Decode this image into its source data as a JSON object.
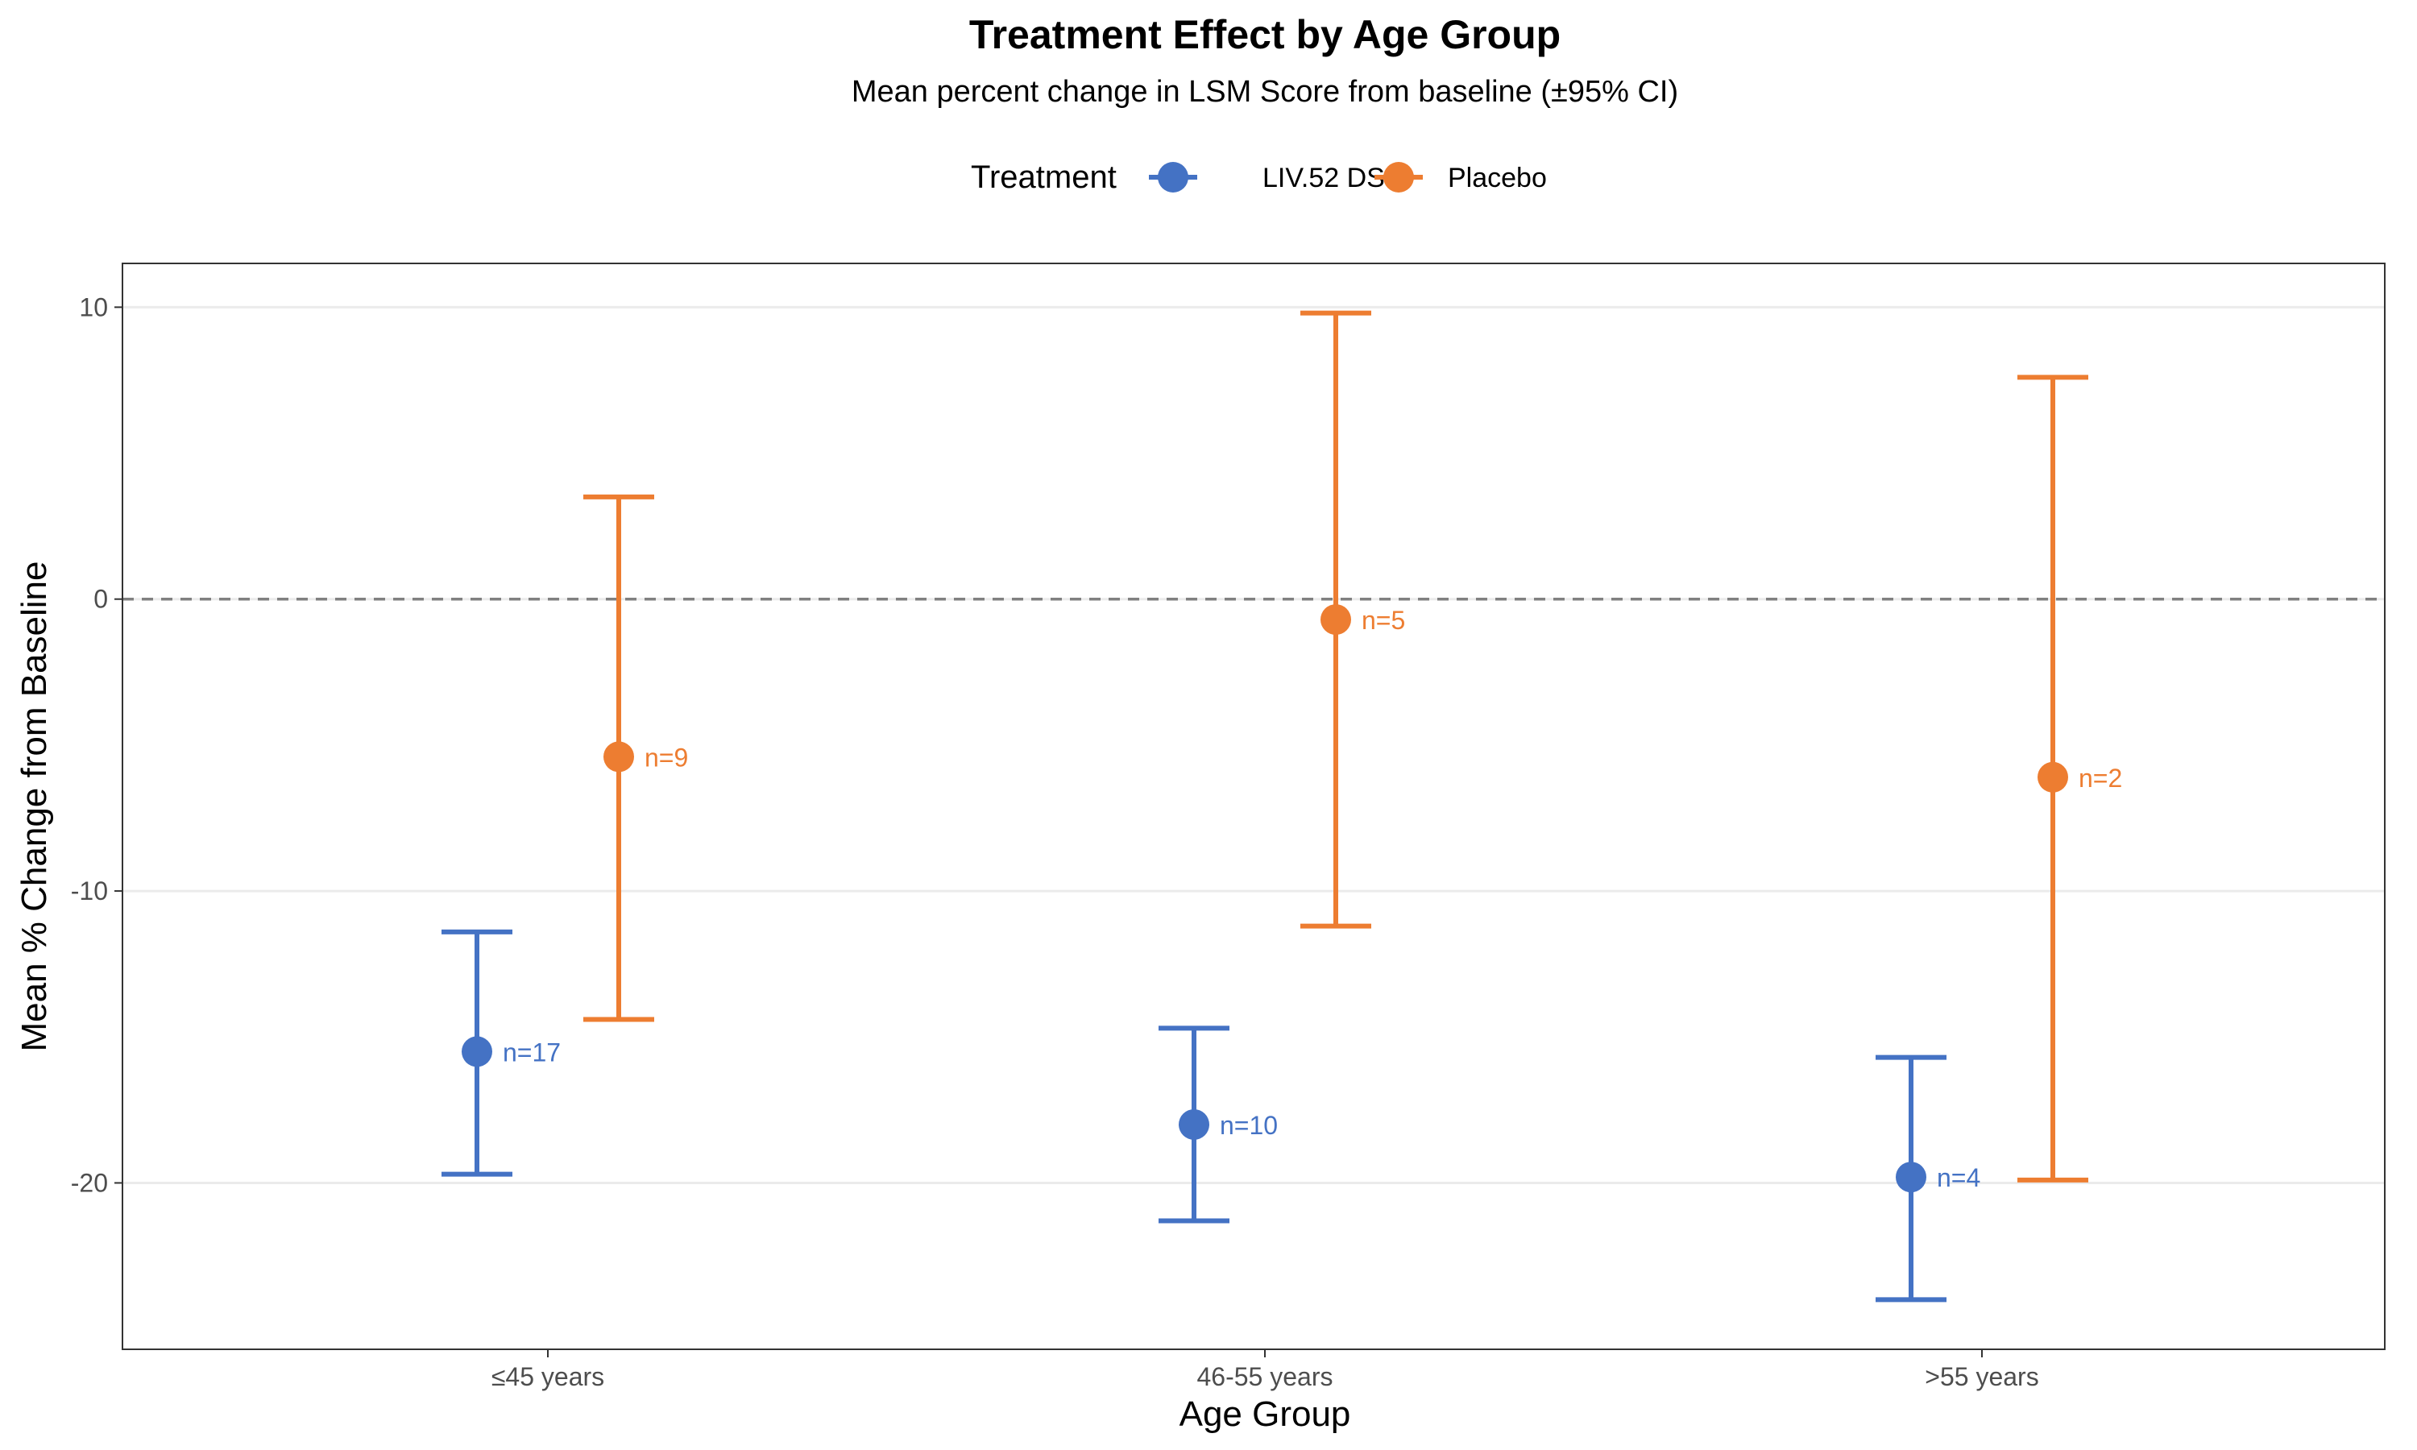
{
  "chart_data": {
    "type": "scatter",
    "title": "Treatment Effect by Age Group",
    "subtitle": "Mean percent change in LSM Score from baseline (±95% CI)",
    "xlabel": "Age Group",
    "ylabel": "Mean % Change from Baseline",
    "categories": [
      "≤45 years",
      "46-55 years",
      ">55 years"
    ],
    "ylim": [
      -25.7,
      11.5
    ],
    "yticks": [
      10,
      0,
      -10,
      -20
    ],
    "reference_line": 0,
    "grid": true,
    "legend": {
      "title": "Treatment",
      "position": "top"
    },
    "series": [
      {
        "name": "LIV.52 DS",
        "color": "#4472C4",
        "points": [
          {
            "category": "≤45 years",
            "mean": -15.5,
            "lower": -19.7,
            "upper": -11.4,
            "n_label": "n=17"
          },
          {
            "category": "46-55 years",
            "mean": -18.0,
            "lower": -21.3,
            "upper": -14.7,
            "n_label": "n=10"
          },
          {
            "category": ">55 years",
            "mean": -19.8,
            "lower": -24.0,
            "upper": -15.7,
            "n_label": "n=4"
          }
        ]
      },
      {
        "name": "Placebo",
        "color": "#ED7D31",
        "points": [
          {
            "category": "≤45 years",
            "mean": -5.4,
            "lower": -14.4,
            "upper": 3.5,
            "n_label": "n=9"
          },
          {
            "category": "46-55 years",
            "mean": -0.7,
            "lower": -11.2,
            "upper": 9.8,
            "n_label": "n=5"
          },
          {
            "category": ">55 years",
            "mean": -6.1,
            "lower": -19.9,
            "upper": 7.6,
            "n_label": "n=2"
          }
        ]
      }
    ]
  }
}
